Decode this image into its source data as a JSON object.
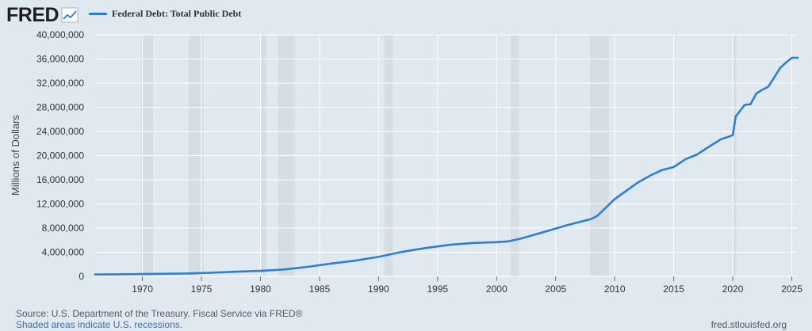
{
  "brand": {
    "logo_text": "FRED",
    "logo_icon": "chart-line-icon"
  },
  "colors": {
    "line": "#2c7fd6",
    "recession": "#d6dde3",
    "grid": "#ffffff",
    "background": "#e1e9f0"
  },
  "chart_data": {
    "type": "line",
    "title": "",
    "xlabel": "",
    "ylabel": "Millions of Dollars",
    "grid": true,
    "legend_position": "top-left",
    "xlim": [
      1966.0,
      2025.5
    ],
    "ylim": [
      0,
      40000000
    ],
    "x_ticks": [
      "1970",
      "1975",
      "1980",
      "1985",
      "1990",
      "1995",
      "2000",
      "2005",
      "2010",
      "2015",
      "2020",
      "2025"
    ],
    "y_ticks": [
      "0",
      "4,000,000",
      "8,000,000",
      "12,000,000",
      "16,000,000",
      "20,000,000",
      "24,000,000",
      "28,000,000",
      "32,000,000",
      "36,000,000",
      "40,000,000"
    ],
    "recessions": [
      [
        1969.9,
        1970.9
      ],
      [
        1973.9,
        1975.2
      ],
      [
        1980.0,
        1980.5
      ],
      [
        1981.5,
        1982.9
      ],
      [
        1990.5,
        1991.2
      ],
      [
        2001.2,
        2001.9
      ],
      [
        2007.9,
        2009.5
      ],
      [
        2020.0,
        2020.3
      ]
    ],
    "series": [
      {
        "name": "Federal Debt: Total Public Debt",
        "x": [
          1966.0,
          1968,
          1970,
          1972,
          1974,
          1976,
          1978,
          1980,
          1982,
          1984,
          1986,
          1988,
          1990,
          1992,
          1994,
          1996,
          1998,
          2000,
          2001,
          2002,
          2004,
          2006,
          2008,
          2008.5,
          2009,
          2010,
          2011,
          2012,
          2013,
          2014,
          2015,
          2016,
          2017,
          2018,
          2019,
          2019.75,
          2020.0,
          2020.25,
          2020.5,
          2021,
          2021.5,
          2022,
          2022.5,
          2023,
          2023.5,
          2024,
          2024.5,
          2025.0,
          2025.5
        ],
        "y": [
          320000,
          345000,
          380000,
          430000,
          480000,
          620000,
          780000,
          910000,
          1140000,
          1570000,
          2120000,
          2600000,
          3230000,
          4060000,
          4690000,
          5220000,
          5530000,
          5660000,
          5800000,
          6230000,
          7350000,
          8500000,
          9490000,
          10000000,
          10900000,
          12800000,
          14200000,
          15600000,
          16700000,
          17600000,
          18100000,
          19400000,
          20200000,
          21500000,
          22700000,
          23200000,
          23400000,
          26500000,
          27100000,
          28400000,
          28500000,
          30300000,
          30900000,
          31400000,
          32900000,
          34500000,
          35400000,
          36200000,
          36200000
        ]
      }
    ]
  },
  "footer": {
    "source": "Source: U.S. Department of the Treasury. Fiscal Service via FRED®",
    "note": "Shaded areas indicate U.S. recessions.",
    "url": "fred.stlouisfed.org"
  }
}
